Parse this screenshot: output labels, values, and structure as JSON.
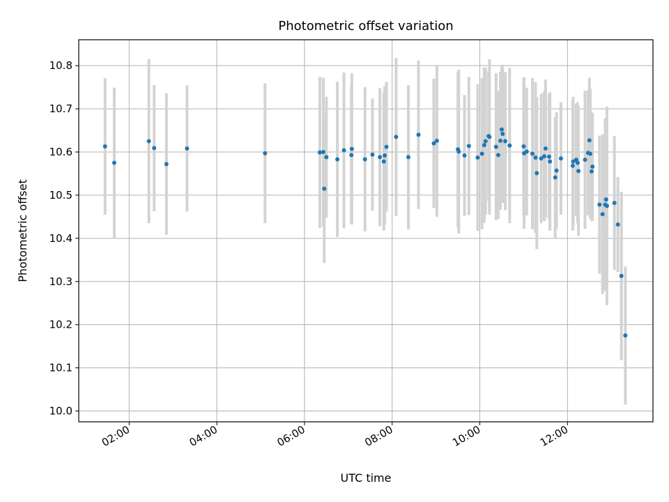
{
  "chart_data": {
    "type": "scatter",
    "title": "Photometric offset variation",
    "xlabel": "UTC time",
    "ylabel": "Photometric offset",
    "grid": true,
    "x_unit": "hours (UTC)",
    "xlim": [
      0.85,
      13.95
    ],
    "ylim": [
      9.975,
      10.86
    ],
    "x_ticks": [
      {
        "value": 2,
        "label": "02:00"
      },
      {
        "value": 4,
        "label": "04:00"
      },
      {
        "value": 6,
        "label": "06:00"
      },
      {
        "value": 8,
        "label": "08:00"
      },
      {
        "value": 10,
        "label": "10:00"
      },
      {
        "value": 12,
        "label": "12:00"
      }
    ],
    "y_ticks": [
      {
        "value": 10.0,
        "label": "10.0"
      },
      {
        "value": 10.1,
        "label": "10.1"
      },
      {
        "value": 10.2,
        "label": "10.2"
      },
      {
        "value": 10.3,
        "label": "10.3"
      },
      {
        "value": 10.4,
        "label": "10.4"
      },
      {
        "value": 10.5,
        "label": "10.5"
      },
      {
        "value": 10.6,
        "label": "10.6"
      },
      {
        "value": 10.7,
        "label": "10.7"
      },
      {
        "value": 10.8,
        "label": "10.8"
      }
    ],
    "point_color": "#1f77b4",
    "errorbar_color": "#d3d3d3",
    "series": [
      {
        "x": [
          1.45,
          1.66,
          2.45,
          2.57,
          2.85,
          3.32,
          5.1,
          6.35,
          6.43,
          6.45,
          6.5,
          6.75,
          6.9,
          7.07,
          7.08,
          7.38,
          7.55,
          7.72,
          7.81,
          7.83,
          7.87,
          8.09,
          8.37,
          8.6,
          8.95,
          9.02,
          9.5,
          9.52,
          9.65,
          9.75,
          9.95,
          10.05,
          10.1,
          10.13,
          10.2,
          10.22,
          10.37,
          10.42,
          10.47,
          10.5,
          10.52,
          10.58,
          10.68,
          11.0,
          11.01,
          11.07,
          11.2,
          11.27,
          11.3,
          11.4,
          11.47,
          11.5,
          11.58,
          11.6,
          11.72,
          11.75,
          11.85,
          12.12,
          12.13,
          12.2,
          12.23,
          12.25,
          12.4,
          12.47,
          12.5,
          12.52,
          12.55,
          12.57,
          12.73,
          12.8,
          12.86,
          12.88,
          12.9,
          13.07,
          13.15,
          13.23,
          13.32
        ],
        "y": [
          10.613,
          10.575,
          10.625,
          10.609,
          10.572,
          10.608,
          10.597,
          10.599,
          10.6,
          10.515,
          10.588,
          10.583,
          10.604,
          10.593,
          10.607,
          10.583,
          10.594,
          10.588,
          10.578,
          10.592,
          10.612,
          10.635,
          10.588,
          10.64,
          10.62,
          10.626,
          10.606,
          10.601,
          10.592,
          10.614,
          10.587,
          10.596,
          10.616,
          10.625,
          10.637,
          10.635,
          10.612,
          10.593,
          10.626,
          10.652,
          10.642,
          10.625,
          10.615,
          10.613,
          10.597,
          10.601,
          10.596,
          10.587,
          10.551,
          10.585,
          10.59,
          10.608,
          10.589,
          10.578,
          10.541,
          10.557,
          10.585,
          10.568,
          10.578,
          10.582,
          10.575,
          10.556,
          10.582,
          10.598,
          10.627,
          10.596,
          10.555,
          10.566,
          10.478,
          10.456,
          10.478,
          10.49,
          10.475,
          10.482,
          10.432,
          10.313,
          10.175
        ],
        "yerr": [
          0.158,
          0.174,
          0.19,
          0.146,
          0.164,
          0.146,
          0.162,
          0.175,
          0.172,
          0.172,
          0.14,
          0.18,
          0.18,
          0.16,
          0.175,
          0.167,
          0.13,
          0.16,
          0.16,
          0.16,
          0.15,
          0.183,
          0.167,
          0.172,
          0.15,
          0.176,
          0.18,
          0.19,
          0.14,
          0.16,
          0.17,
          0.175,
          0.18,
          0.17,
          0.15,
          0.18,
          0.17,
          0.148,
          0.16,
          0.15,
          0.16,
          0.16,
          0.18,
          0.16,
          0.175,
          0.148,
          0.175,
          0.175,
          0.176,
          0.15,
          0.15,
          0.16,
          0.145,
          0.16,
          0.14,
          0.135,
          0.13,
          0.15,
          0.15,
          0.13,
          0.14,
          0.15,
          0.16,
          0.145,
          0.145,
          0.15,
          0.115,
          0.125,
          0.16,
          0.185,
          0.2,
          0.155,
          0.23,
          0.155,
          0.11,
          0.195,
          0.16
        ]
      }
    ]
  }
}
